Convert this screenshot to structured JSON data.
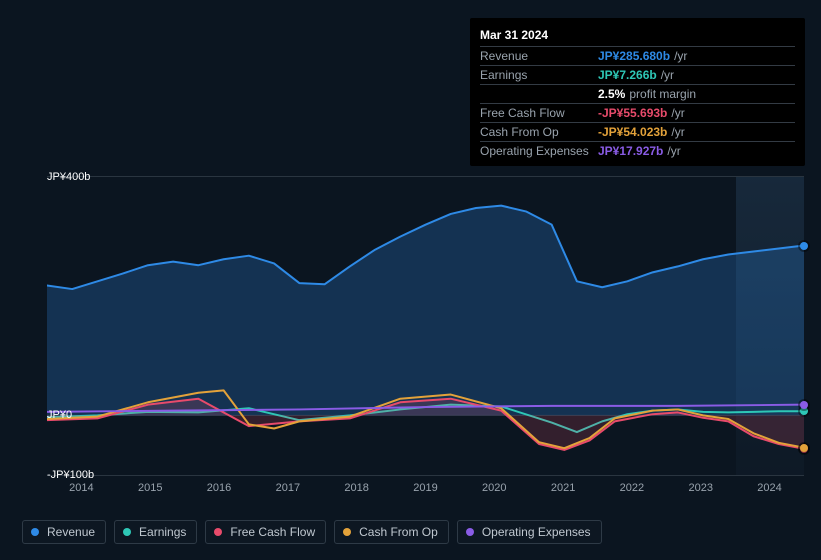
{
  "tooltip": {
    "date": "Mar 31 2024",
    "rows": [
      {
        "label": "Revenue",
        "value": "JP¥285.680b",
        "unit": "/yr",
        "color": "#2e8ae6"
      },
      {
        "label": "Earnings",
        "value": "JP¥7.266b",
        "unit": "/yr",
        "color": "#2ec7b6"
      },
      {
        "label": "",
        "value": "2.5%",
        "unit": "profit margin",
        "color": "#ffffff"
      },
      {
        "label": "Free Cash Flow",
        "value": "-JP¥55.693b",
        "unit": "/yr",
        "color": "#e84b6b"
      },
      {
        "label": "Cash From Op",
        "value": "-JP¥54.023b",
        "unit": "/yr",
        "color": "#e3a23a"
      },
      {
        "label": "Operating Expenses",
        "value": "JP¥17.927b",
        "unit": "/yr",
        "color": "#8a5ce6"
      }
    ]
  },
  "chart": {
    "type": "area-line",
    "background": "#0b1520",
    "grid_color": "#2a3540",
    "ylim": [
      -100,
      400
    ],
    "y_ticks": [
      {
        "v": 400,
        "label": "JP¥400b"
      },
      {
        "v": 0,
        "label": "JP¥0"
      },
      {
        "v": -100,
        "label": "-JP¥100b"
      }
    ],
    "x_labels": [
      "2014",
      "2015",
      "2016",
      "2017",
      "2018",
      "2019",
      "2020",
      "2021",
      "2022",
      "2023",
      "2024"
    ],
    "series": [
      {
        "name": "Revenue",
        "color": "#2e8ae6",
        "fill": "rgba(46,138,230,0.25)",
        "width": 2,
        "points": [
          [
            0,
            218
          ],
          [
            4,
            212
          ],
          [
            8,
            225
          ],
          [
            12,
            238
          ],
          [
            16,
            252
          ],
          [
            20,
            258
          ],
          [
            24,
            252
          ],
          [
            28,
            262
          ],
          [
            32,
            268
          ],
          [
            36,
            255
          ],
          [
            40,
            222
          ],
          [
            44,
            220
          ],
          [
            48,
            250
          ],
          [
            52,
            278
          ],
          [
            56,
            300
          ],
          [
            60,
            320
          ],
          [
            64,
            338
          ],
          [
            68,
            348
          ],
          [
            72,
            352
          ],
          [
            76,
            342
          ],
          [
            80,
            320
          ],
          [
            84,
            225
          ],
          [
            88,
            215
          ],
          [
            92,
            225
          ],
          [
            96,
            240
          ],
          [
            100,
            250
          ],
          [
            104,
            262
          ],
          [
            108,
            270
          ],
          [
            112,
            275
          ],
          [
            116,
            280
          ],
          [
            120,
            285
          ]
        ]
      },
      {
        "name": "Earnings",
        "color": "#2ec7b6",
        "fill": "none",
        "width": 2,
        "points": [
          [
            0,
            -3
          ],
          [
            8,
            0
          ],
          [
            16,
            6
          ],
          [
            24,
            5
          ],
          [
            32,
            12
          ],
          [
            40,
            -8
          ],
          [
            48,
            0
          ],
          [
            56,
            10
          ],
          [
            64,
            18
          ],
          [
            72,
            15
          ],
          [
            80,
            -12
          ],
          [
            84,
            -28
          ],
          [
            88,
            -10
          ],
          [
            92,
            2
          ],
          [
            96,
            8
          ],
          [
            100,
            10
          ],
          [
            104,
            6
          ],
          [
            108,
            5
          ],
          [
            112,
            6
          ],
          [
            116,
            7
          ],
          [
            120,
            7
          ]
        ]
      },
      {
        "name": "Free Cash Flow",
        "color": "#e84b6b",
        "fill": "rgba(232,75,107,0.18)",
        "width": 2,
        "points": [
          [
            0,
            -8
          ],
          [
            8,
            -5
          ],
          [
            16,
            18
          ],
          [
            24,
            28
          ],
          [
            32,
            -18
          ],
          [
            40,
            -10
          ],
          [
            48,
            -5
          ],
          [
            56,
            22
          ],
          [
            64,
            28
          ],
          [
            72,
            8
          ],
          [
            78,
            -48
          ],
          [
            82,
            -58
          ],
          [
            86,
            -42
          ],
          [
            90,
            -10
          ],
          [
            96,
            2
          ],
          [
            100,
            5
          ],
          [
            104,
            -4
          ],
          [
            108,
            -10
          ],
          [
            112,
            -35
          ],
          [
            116,
            -48
          ],
          [
            120,
            -56
          ]
        ]
      },
      {
        "name": "Cash From Op",
        "color": "#e3a23a",
        "fill": "none",
        "width": 2,
        "points": [
          [
            0,
            -6
          ],
          [
            8,
            -2
          ],
          [
            16,
            22
          ],
          [
            24,
            38
          ],
          [
            28,
            42
          ],
          [
            32,
            -15
          ],
          [
            36,
            -22
          ],
          [
            40,
            -10
          ],
          [
            48,
            -2
          ],
          [
            56,
            28
          ],
          [
            64,
            35
          ],
          [
            72,
            12
          ],
          [
            78,
            -45
          ],
          [
            82,
            -55
          ],
          [
            86,
            -38
          ],
          [
            90,
            -5
          ],
          [
            96,
            8
          ],
          [
            100,
            10
          ],
          [
            104,
            0
          ],
          [
            108,
            -6
          ],
          [
            112,
            -30
          ],
          [
            116,
            -46
          ],
          [
            120,
            -54
          ]
        ]
      },
      {
        "name": "Operating Expenses",
        "color": "#8a5ce6",
        "fill": "none",
        "width": 2,
        "points": [
          [
            0,
            6
          ],
          [
            20,
            8
          ],
          [
            40,
            10
          ],
          [
            60,
            14
          ],
          [
            80,
            16
          ],
          [
            100,
            16
          ],
          [
            120,
            18
          ]
        ]
      }
    ]
  },
  "legend": [
    {
      "label": "Revenue",
      "color": "#2e8ae6"
    },
    {
      "label": "Earnings",
      "color": "#2ec7b6"
    },
    {
      "label": "Free Cash Flow",
      "color": "#e84b6b"
    },
    {
      "label": "Cash From Op",
      "color": "#e3a23a"
    },
    {
      "label": "Operating Expenses",
      "color": "#8a5ce6"
    }
  ]
}
